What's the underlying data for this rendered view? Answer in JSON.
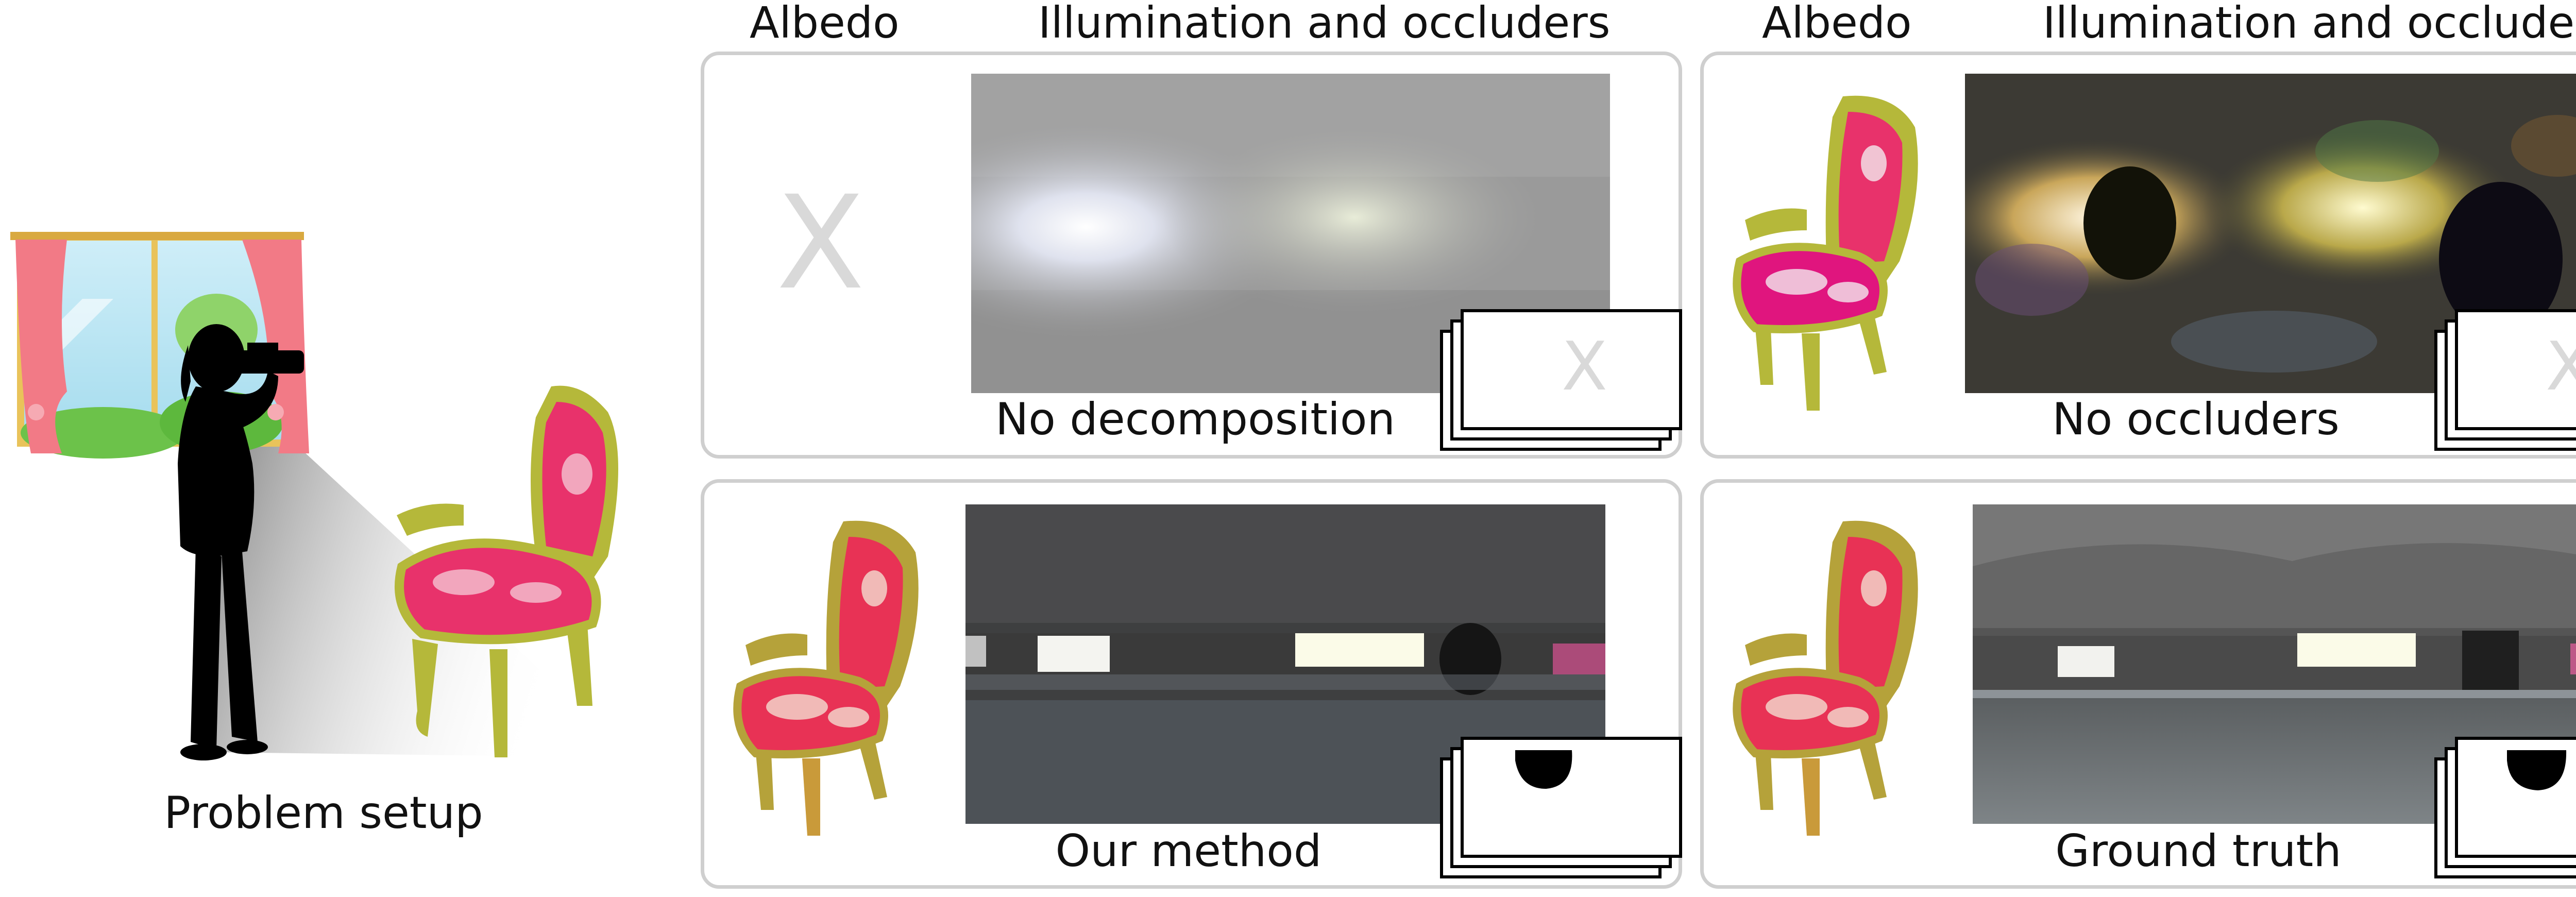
{
  "headers": {
    "albedo": "Albedo",
    "illumination": "Illumination and occluders"
  },
  "setup": {
    "caption": "Problem setup"
  },
  "panels": [
    {
      "id": "no-decomposition",
      "caption": "No decomposition",
      "albedo_placeholder": "X",
      "mask_placeholder": "X"
    },
    {
      "id": "no-occluders",
      "caption": "No occluders",
      "mask_placeholder": "X"
    },
    {
      "id": "our-method",
      "caption": "Our method"
    },
    {
      "id": "ground-truth",
      "caption": "Ground truth"
    }
  ],
  "colors": {
    "panel_border": "#cfcfcf",
    "chair_frame": "#b5b83a",
    "chair_fabric": "#e8326b",
    "curtain": "#f27a86"
  }
}
